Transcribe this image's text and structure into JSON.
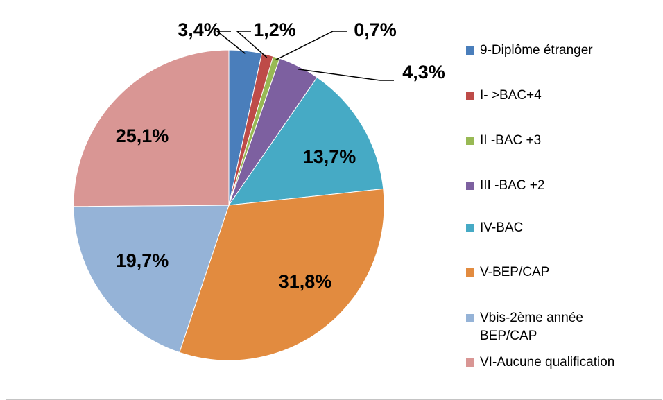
{
  "chart_data": {
    "type": "pie",
    "categories": [
      "9-Diplôme étranger",
      "I- >BAC+4",
      "II -BAC +3",
      "III -BAC +2",
      "IV-BAC",
      "V-BEP/CAP",
      "Vbis-2ème année BEP/CAP",
      "VI-Aucune qualification"
    ],
    "values": [
      3.4,
      1.2,
      0.7,
      4.3,
      13.7,
      31.8,
      19.7,
      25.1
    ],
    "value_labels": [
      "3,4%",
      "1,2%",
      "0,7%",
      "4,3%",
      "13,7%",
      "31,8%",
      "19,7%",
      "25,1%"
    ],
    "colors": [
      "#4a7ebb",
      "#be4b48",
      "#98b954",
      "#7d60a0",
      "#46aac5",
      "#e28b3f",
      "#95b3d7",
      "#d99694"
    ],
    "legend": "right"
  }
}
